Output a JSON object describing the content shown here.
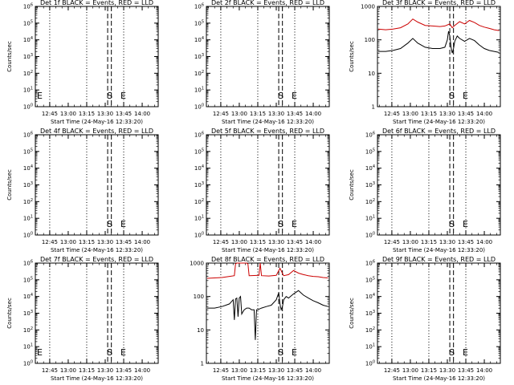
{
  "colors": {
    "events": "#000000",
    "lld": "#cc0000",
    "background": "#ffffff",
    "axes": "#000000"
  },
  "chart_data": [
    {
      "type": "line",
      "title": "Det 1f BLACK = Events, RED = LLD",
      "xlabel": "Start Time (24-May-16 12:33:20)",
      "ylabel": "Counts/sec",
      "xlim": [
        "12:33:20",
        "14:13:00"
      ],
      "ylim": [
        1,
        1000000
      ],
      "yscale": "log",
      "x_ticks": [
        "12:45",
        "13:00",
        "13:15",
        "13:30",
        "13:45",
        "14:00"
      ],
      "y_ticks": [
        "10^0",
        "10^1",
        "10^2",
        "10^3",
        "10^4",
        "10^5",
        "10^6"
      ],
      "dotted_lines": [
        "12:45",
        "13:15",
        "13:45"
      ],
      "dashed_lines": [
        "13:32",
        "13:35"
      ],
      "markers": [
        {
          "label": "E",
          "x": "12:34"
        },
        {
          "label": "S",
          "x": "13:33"
        },
        {
          "label": "E",
          "x": "13:44"
        }
      ],
      "series": []
    },
    {
      "type": "line",
      "title": "Det 2f BLACK = Events, RED = LLD",
      "xlabel": "Start Time (24-May-16 12:33:20)",
      "ylabel": "",
      "xlim": [
        "12:33:20",
        "14:13:00"
      ],
      "ylim": [
        1,
        1000000
      ],
      "yscale": "log",
      "x_ticks": [
        "12:45",
        "13:00",
        "13:15",
        "13:30",
        "13:45",
        "14:00"
      ],
      "y_ticks": [
        "10^0",
        "10^1",
        "10^2",
        "10^3",
        "10^4",
        "10^5",
        "10^6"
      ],
      "dotted_lines": [
        "12:45",
        "13:15",
        "13:45"
      ],
      "dashed_lines": [
        "13:32",
        "13:35"
      ],
      "markers": [
        {
          "label": "S",
          "x": "13:33"
        },
        {
          "label": "E",
          "x": "13:44"
        }
      ],
      "series": []
    },
    {
      "type": "line",
      "title": "Det 3f BLACK = Events, RED = LLD",
      "xlabel": "Start Time (24-May-16 12:33:20)",
      "ylabel": "Counts/sec",
      "xlim": [
        "12:33:20",
        "14:13:00"
      ],
      "ylim": [
        1,
        1000
      ],
      "yscale": "log",
      "x_ticks": [
        "12:45",
        "13:00",
        "13:15",
        "13:30",
        "13:45",
        "14:00"
      ],
      "y_ticks": [
        "1",
        "10",
        "100",
        "1000"
      ],
      "dotted_lines": [
        "12:45",
        "13:15",
        "13:45"
      ],
      "dashed_lines": [
        "13:32",
        "13:35"
      ],
      "markers": [
        {
          "label": "S",
          "x": "13:33"
        },
        {
          "label": "E",
          "x": "13:44"
        }
      ],
      "series": [
        {
          "color": "#cc0000",
          "x": [
            "12:34",
            "12:40",
            "12:46",
            "12:52",
            "12:58",
            "13:02",
            "13:06",
            "13:12",
            "13:18",
            "13:24",
            "13:28",
            "13:32",
            "13:34",
            "13:36",
            "13:40",
            "13:44",
            "13:48",
            "13:52",
            "13:56",
            "14:00",
            "14:04",
            "14:08",
            "14:12"
          ],
          "y": [
            210,
            200,
            210,
            230,
            300,
            420,
            340,
            270,
            260,
            250,
            260,
            300,
            230,
            270,
            350,
            300,
            380,
            330,
            270,
            240,
            220,
            200,
            190
          ]
        },
        {
          "color": "#000000",
          "x": [
            "12:34",
            "12:40",
            "12:46",
            "12:52",
            "12:58",
            "13:02",
            "13:06",
            "13:12",
            "13:18",
            "13:24",
            "13:28",
            "13:30",
            "13:31",
            "13:32",
            "13:33",
            "13:34",
            "13:35",
            "13:36",
            "13:38",
            "13:40",
            "13:44",
            "13:48",
            "13:52",
            "13:56",
            "14:00",
            "14:04",
            "14:08",
            "14:12"
          ],
          "y": [
            45,
            45,
            48,
            55,
            80,
            110,
            80,
            60,
            55,
            55,
            60,
            100,
            180,
            130,
            60,
            40,
            55,
            90,
            130,
            110,
            90,
            110,
            95,
            70,
            55,
            48,
            45,
            42
          ]
        }
      ]
    },
    {
      "type": "line",
      "title": "Det 4f BLACK = Events, RED = LLD",
      "xlabel": "Start Time (24-May-16 12:33:20)",
      "ylabel": "Counts/sec",
      "xlim": [
        "12:33:20",
        "14:13:00"
      ],
      "ylim": [
        1,
        1000000
      ],
      "yscale": "log",
      "x_ticks": [
        "12:45",
        "13:00",
        "13:15",
        "13:30",
        "13:45",
        "14:00"
      ],
      "y_ticks": [
        "10^0",
        "10^1",
        "10^2",
        "10^3",
        "10^4",
        "10^5",
        "10^6"
      ],
      "dotted_lines": [
        "12:45",
        "13:15",
        "13:45"
      ],
      "dashed_lines": [
        "13:32",
        "13:35"
      ],
      "markers": [
        {
          "label": "S",
          "x": "13:33"
        },
        {
          "label": "E",
          "x": "13:44"
        }
      ],
      "series": []
    },
    {
      "type": "line",
      "title": "Det 5f BLACK = Events, RED = LLD",
      "xlabel": "Start Time (24-May-16 12:33:20)",
      "ylabel": "",
      "xlim": [
        "12:33:20",
        "14:13:00"
      ],
      "ylim": [
        1,
        1000000
      ],
      "yscale": "log",
      "x_ticks": [
        "12:45",
        "13:00",
        "13:15",
        "13:30",
        "13:45",
        "14:00"
      ],
      "y_ticks": [
        "10^0",
        "10^1",
        "10^2",
        "10^3",
        "10^4",
        "10^5",
        "10^6"
      ],
      "dotted_lines": [
        "12:45",
        "13:15",
        "13:45"
      ],
      "dashed_lines": [
        "13:32",
        "13:35"
      ],
      "markers": [
        {
          "label": "S",
          "x": "13:33"
        },
        {
          "label": "E",
          "x": "13:44"
        }
      ],
      "series": []
    },
    {
      "type": "line",
      "title": "Det 6f BLACK = Events, RED = LLD",
      "xlabel": "Start Time (24-May-16 12:33:20)",
      "ylabel": "Counts/sec",
      "xlim": [
        "12:33:20",
        "14:13:00"
      ],
      "ylim": [
        1,
        1000000
      ],
      "yscale": "log",
      "x_ticks": [
        "12:45",
        "13:00",
        "13:15",
        "13:30",
        "13:45",
        "14:00"
      ],
      "y_ticks": [
        "10^0",
        "10^1",
        "10^2",
        "10^3",
        "10^4",
        "10^5",
        "10^6"
      ],
      "dotted_lines": [
        "12:45",
        "13:15",
        "13:45"
      ],
      "dashed_lines": [
        "13:32",
        "13:35"
      ],
      "markers": [
        {
          "label": "S",
          "x": "13:33"
        },
        {
          "label": "E",
          "x": "13:44"
        }
      ],
      "series": []
    },
    {
      "type": "line",
      "title": "Det 7f BLACK = Events, RED = LLD",
      "xlabel": "Start Time (24-May-16 12:33:20)",
      "ylabel": "Counts/sec",
      "xlim": [
        "12:33:20",
        "14:13:00"
      ],
      "ylim": [
        1,
        1000000
      ],
      "yscale": "log",
      "x_ticks": [
        "12:45",
        "13:00",
        "13:15",
        "13:30",
        "13:45",
        "14:00"
      ],
      "y_ticks": [
        "10^0",
        "10^1",
        "10^2",
        "10^3",
        "10^4",
        "10^5",
        "10^6"
      ],
      "dotted_lines": [
        "12:45",
        "13:15",
        "13:45"
      ],
      "dashed_lines": [
        "13:32",
        "13:35"
      ],
      "markers": [
        {
          "label": "E",
          "x": "12:34"
        },
        {
          "label": "S",
          "x": "13:33"
        },
        {
          "label": "E",
          "x": "13:44"
        }
      ],
      "series": []
    },
    {
      "type": "line",
      "title": "Det 8f BLACK = Events, RED = LLD",
      "xlabel": "Start Time (24-May-16 12:33:20)",
      "ylabel": "",
      "xlim": [
        "12:33:20",
        "14:13:00"
      ],
      "ylim": [
        1,
        1000
      ],
      "yscale": "log",
      "x_ticks": [
        "12:45",
        "13:00",
        "13:15",
        "13:30",
        "13:45",
        "14:00"
      ],
      "y_ticks": [
        "1",
        "10",
        "100",
        "1000"
      ],
      "dotted_lines": [
        "12:45",
        "13:15",
        "13:45"
      ],
      "dashed_lines": [
        "13:32",
        "13:35"
      ],
      "markers": [
        {
          "label": "S",
          "x": "13:33"
        },
        {
          "label": "E",
          "x": "13:44"
        }
      ],
      "series": [
        {
          "color": "#cc0000",
          "x": [
            "12:34",
            "12:40",
            "12:46",
            "12:52",
            "12:56",
            "12:57",
            "12:58",
            "13:06",
            "13:07",
            "13:08",
            "13:16",
            "13:17",
            "13:18",
            "13:24",
            "13:30",
            "13:33",
            "13:36",
            "13:40",
            "13:44",
            "13:48",
            "13:52",
            "13:56",
            "14:00",
            "14:04",
            "14:08",
            "14:12"
          ],
          "y": [
            350,
            360,
            370,
            400,
            420,
            950,
            1000,
            1000,
            950,
            420,
            430,
            1000,
            420,
            410,
            430,
            700,
            420,
            450,
            600,
            500,
            450,
            420,
            400,
            390,
            370,
            360
          ]
        },
        {
          "color": "#000000",
          "x": [
            "12:34",
            "12:40",
            "12:46",
            "12:52",
            "12:55",
            "12:56",
            "12:57",
            "12:58",
            "12:59",
            "13:00",
            "13:01",
            "13:02",
            "13:03",
            "13:04",
            "13:06",
            "13:08",
            "13:10",
            "13:12",
            "13:13",
            "13:14",
            "13:15",
            "13:16",
            "13:18",
            "13:22",
            "13:26",
            "13:30",
            "13:32",
            "13:33",
            "13:34",
            "13:35",
            "13:36",
            "13:38",
            "13:40",
            "13:44",
            "13:48",
            "13:52",
            "13:56",
            "14:00",
            "14:04",
            "14:08",
            "14:12"
          ],
          "y": [
            45,
            45,
            50,
            60,
            80,
            20,
            85,
            90,
            25,
            90,
            100,
            30,
            35,
            40,
            45,
            45,
            40,
            40,
            5,
            40,
            40,
            42,
            45,
            50,
            55,
            80,
            130,
            60,
            40,
            50,
            80,
            100,
            90,
            120,
            150,
            110,
            90,
            75,
            65,
            55,
            50
          ]
        }
      ]
    },
    {
      "type": "line",
      "title": "Det 9f BLACK = Events, RED = LLD",
      "xlabel": "Start Time (24-May-16 12:33:20)",
      "ylabel": "Counts/sec",
      "xlim": [
        "12:33:20",
        "14:13:00"
      ],
      "ylim": [
        1,
        1000000
      ],
      "yscale": "log",
      "x_ticks": [
        "12:45",
        "13:00",
        "13:15",
        "13:30",
        "13:45",
        "14:00"
      ],
      "y_ticks": [
        "10^0",
        "10^1",
        "10^2",
        "10^3",
        "10^4",
        "10^5",
        "10^6"
      ],
      "dotted_lines": [
        "12:45",
        "13:15",
        "13:45"
      ],
      "dashed_lines": [
        "13:32",
        "13:35"
      ],
      "markers": [
        {
          "label": "S",
          "x": "13:33"
        },
        {
          "label": "E",
          "x": "13:44"
        }
      ],
      "series": []
    }
  ]
}
